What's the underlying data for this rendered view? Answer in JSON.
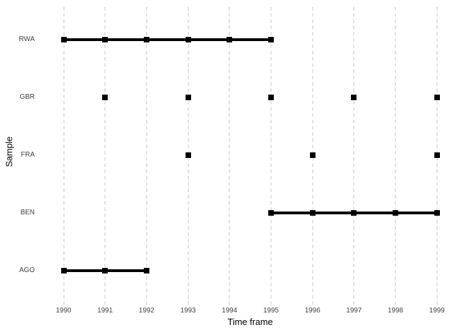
{
  "chart_data": {
    "type": "scatter",
    "variant": "timeline-gantt",
    "title": "",
    "xlabel": "Time frame",
    "ylabel": "Sample",
    "x_ticks": [
      "1990",
      "1991",
      "1992",
      "1993",
      "1994",
      "1995",
      "1996",
      "1997",
      "1998",
      "1999"
    ],
    "xlim": [
      1989.55,
      1999.45
    ],
    "categories_top_to_bottom": [
      "RWA",
      "GBR",
      "FRA",
      "BEN",
      "AGO"
    ],
    "grid": "vertical-dashed-only",
    "legend": "none",
    "marker": "filled-square",
    "series": [
      {
        "name": "RWA",
        "points": [
          1990,
          1991,
          1992,
          1993,
          1994,
          1995
        ],
        "segments": [
          [
            1990,
            1995
          ]
        ]
      },
      {
        "name": "GBR",
        "points": [
          1991,
          1993,
          1995,
          1997,
          1999
        ],
        "segments": []
      },
      {
        "name": "FRA",
        "points": [
          1993,
          1996,
          1999
        ],
        "segments": []
      },
      {
        "name": "BEN",
        "points": [
          1995,
          1996,
          1997,
          1998,
          1999
        ],
        "segments": [
          [
            1995,
            1999
          ]
        ]
      },
      {
        "name": "AGO",
        "points": [
          1990,
          1991,
          1992
        ],
        "segments": [
          [
            1990,
            1992
          ]
        ]
      }
    ],
    "colors": {
      "point": "#000000",
      "segment": "#000000",
      "gridline": "#e2e2e2",
      "axis_text": "#404040",
      "axis_title": "#000000",
      "background": "#ffffff"
    }
  }
}
